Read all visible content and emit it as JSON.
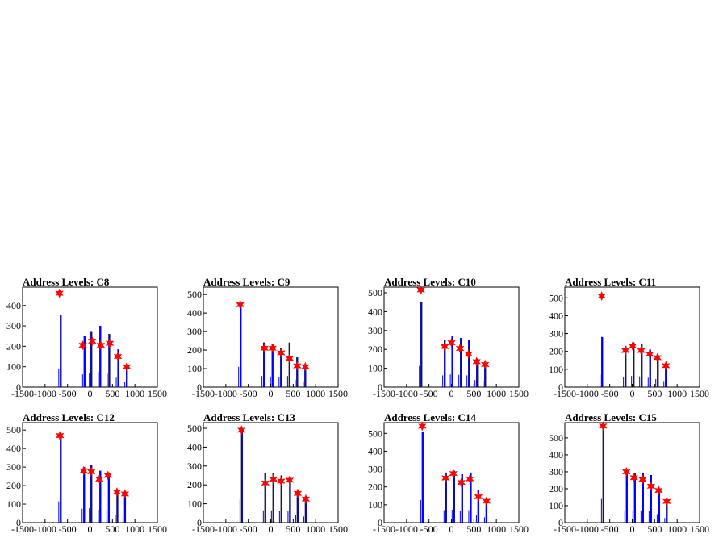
{
  "chart_data": [
    {
      "type": "histogram",
      "title": "Address Levels: C8",
      "xlim": [
        -1500,
        1500
      ],
      "ylim": [
        0,
        490
      ],
      "xticks": [
        -1500,
        -1000,
        -500,
        0,
        500,
        1000,
        1500
      ],
      "yticks": [
        0,
        100,
        200,
        300,
        400
      ],
      "bars": [
        {
          "x": -650,
          "y": 355
        },
        {
          "x": -120,
          "y": 250
        },
        {
          "x": 30,
          "y": 270
        },
        {
          "x": 230,
          "y": 300
        },
        {
          "x": 430,
          "y": 260
        },
        {
          "x": 630,
          "y": 185
        },
        {
          "x": 820,
          "y": 95
        }
      ],
      "peaks": [
        {
          "x": -680,
          "y": 460
        },
        {
          "x": -160,
          "y": 205
        },
        {
          "x": 50,
          "y": 225
        },
        {
          "x": 240,
          "y": 205
        },
        {
          "x": 440,
          "y": 215
        },
        {
          "x": 620,
          "y": 150
        },
        {
          "x": 820,
          "y": 100
        }
      ]
    },
    {
      "type": "histogram",
      "title": "Address Levels: C9",
      "xlim": [
        -1500,
        1500
      ],
      "ylim": [
        0,
        540
      ],
      "xticks": [
        -1500,
        -1000,
        -500,
        0,
        500,
        1000,
        1500
      ],
      "yticks": [
        0,
        100,
        200,
        300,
        400,
        500
      ],
      "bars": [
        {
          "x": -670,
          "y": 440
        },
        {
          "x": -150,
          "y": 240
        },
        {
          "x": 40,
          "y": 230
        },
        {
          "x": 230,
          "y": 210
        },
        {
          "x": 420,
          "y": 240
        },
        {
          "x": 590,
          "y": 160
        },
        {
          "x": 770,
          "y": 110
        }
      ],
      "peaks": [
        {
          "x": -680,
          "y": 445
        },
        {
          "x": -140,
          "y": 210
        },
        {
          "x": 40,
          "y": 210
        },
        {
          "x": 230,
          "y": 185
        },
        {
          "x": 420,
          "y": 155
        },
        {
          "x": 590,
          "y": 115
        },
        {
          "x": 770,
          "y": 110
        }
      ]
    },
    {
      "type": "histogram",
      "title": "Address Levels: C10",
      "xlim": [
        -1500,
        1500
      ],
      "ylim": [
        0,
        530
      ],
      "xticks": [
        -1500,
        -1000,
        -500,
        0,
        500,
        1000,
        1500
      ],
      "yticks": [
        0,
        100,
        200,
        300,
        400,
        500
      ],
      "bars": [
        {
          "x": -670,
          "y": 450
        },
        {
          "x": -150,
          "y": 250
        },
        {
          "x": 20,
          "y": 270
        },
        {
          "x": 210,
          "y": 260
        },
        {
          "x": 390,
          "y": 250
        },
        {
          "x": 570,
          "y": 150
        },
        {
          "x": 750,
          "y": 130
        }
      ],
      "peaks": [
        {
          "x": -680,
          "y": 515
        },
        {
          "x": -150,
          "y": 215
        },
        {
          "x": 0,
          "y": 235
        },
        {
          "x": 190,
          "y": 205
        },
        {
          "x": 380,
          "y": 175
        },
        {
          "x": 560,
          "y": 135
        },
        {
          "x": 750,
          "y": 120
        }
      ]
    },
    {
      "type": "histogram",
      "title": "Address Levels: C11",
      "xlim": [
        -1500,
        1500
      ],
      "ylim": [
        0,
        560
      ],
      "xticks": [
        -1500,
        -1000,
        -500,
        0,
        500,
        1000,
        1500
      ],
      "yticks": [
        0,
        100,
        200,
        300,
        400,
        500
      ],
      "bars": [
        {
          "x": -670,
          "y": 280
        },
        {
          "x": -150,
          "y": 230
        },
        {
          "x": 30,
          "y": 250
        },
        {
          "x": 210,
          "y": 240
        },
        {
          "x": 400,
          "y": 210
        },
        {
          "x": 570,
          "y": 180
        },
        {
          "x": 750,
          "y": 120
        }
      ],
      "peaks": [
        {
          "x": -680,
          "y": 510
        },
        {
          "x": -150,
          "y": 205
        },
        {
          "x": 10,
          "y": 230
        },
        {
          "x": 200,
          "y": 205
        },
        {
          "x": 390,
          "y": 185
        },
        {
          "x": 560,
          "y": 165
        },
        {
          "x": 750,
          "y": 120
        }
      ]
    },
    {
      "type": "histogram",
      "title": "Address Levels: C12",
      "xlim": [
        -1500,
        1500
      ],
      "ylim": [
        0,
        540
      ],
      "xticks": [
        -1500,
        -1000,
        -500,
        0,
        500,
        1000,
        1500
      ],
      "yticks": [
        0,
        100,
        200,
        300,
        400,
        500
      ],
      "bars": [
        {
          "x": -650,
          "y": 460
        },
        {
          "x": -130,
          "y": 300
        },
        {
          "x": 30,
          "y": 310
        },
        {
          "x": 230,
          "y": 280
        },
        {
          "x": 420,
          "y": 270
        },
        {
          "x": 610,
          "y": 170
        },
        {
          "x": 780,
          "y": 150
        }
      ],
      "peaks": [
        {
          "x": -670,
          "y": 470
        },
        {
          "x": -140,
          "y": 280
        },
        {
          "x": 30,
          "y": 275
        },
        {
          "x": 210,
          "y": 235
        },
        {
          "x": 400,
          "y": 255
        },
        {
          "x": 600,
          "y": 165
        },
        {
          "x": 780,
          "y": 155
        }
      ]
    },
    {
      "type": "histogram",
      "title": "Address Levels: C13",
      "xlim": [
        -1500,
        1500
      ],
      "ylim": [
        0,
        530
      ],
      "xticks": [
        -1500,
        -1000,
        -500,
        0,
        500,
        1000,
        1500
      ],
      "yticks": [
        0,
        100,
        200,
        300,
        400,
        500
      ],
      "bars": [
        {
          "x": -640,
          "y": 490
        },
        {
          "x": -120,
          "y": 260
        },
        {
          "x": 60,
          "y": 260
        },
        {
          "x": 240,
          "y": 250
        },
        {
          "x": 430,
          "y": 240
        },
        {
          "x": 600,
          "y": 160
        },
        {
          "x": 780,
          "y": 130
        }
      ],
      "peaks": [
        {
          "x": -650,
          "y": 490
        },
        {
          "x": -120,
          "y": 210
        },
        {
          "x": 60,
          "y": 230
        },
        {
          "x": 230,
          "y": 220
        },
        {
          "x": 420,
          "y": 225
        },
        {
          "x": 600,
          "y": 155
        },
        {
          "x": 780,
          "y": 125
        }
      ]
    },
    {
      "type": "histogram",
      "title": "Address Levels: C14",
      "xlim": [
        -1500,
        1500
      ],
      "ylim": [
        0,
        560
      ],
      "xticks": [
        -1500,
        -1000,
        -500,
        0,
        500,
        1000,
        1500
      ],
      "yticks": [
        0,
        100,
        200,
        300,
        400,
        500
      ],
      "bars": [
        {
          "x": -640,
          "y": 510
        },
        {
          "x": -120,
          "y": 280
        },
        {
          "x": 60,
          "y": 290
        },
        {
          "x": 240,
          "y": 270
        },
        {
          "x": 430,
          "y": 280
        },
        {
          "x": 600,
          "y": 180
        },
        {
          "x": 780,
          "y": 120
        }
      ],
      "peaks": [
        {
          "x": -650,
          "y": 540
        },
        {
          "x": -130,
          "y": 250
        },
        {
          "x": 40,
          "y": 275
        },
        {
          "x": 220,
          "y": 225
        },
        {
          "x": 410,
          "y": 245
        },
        {
          "x": 600,
          "y": 145
        },
        {
          "x": 780,
          "y": 120
        }
      ]
    },
    {
      "type": "histogram",
      "title": "Address Levels: C15",
      "xlim": [
        -1500,
        1500
      ],
      "ylim": [
        0,
        590
      ],
      "xticks": [
        -1500,
        -1000,
        -500,
        0,
        500,
        1000,
        1500
      ],
      "yticks": [
        0,
        100,
        200,
        300,
        400,
        500
      ],
      "bars": [
        {
          "x": -640,
          "y": 560
        },
        {
          "x": -120,
          "y": 290
        },
        {
          "x": 60,
          "y": 290
        },
        {
          "x": 240,
          "y": 290
        },
        {
          "x": 420,
          "y": 280
        },
        {
          "x": 600,
          "y": 200
        },
        {
          "x": 770,
          "y": 110
        }
      ],
      "peaks": [
        {
          "x": -650,
          "y": 570
        },
        {
          "x": -130,
          "y": 300
        },
        {
          "x": 40,
          "y": 265
        },
        {
          "x": 230,
          "y": 255
        },
        {
          "x": 420,
          "y": 215
        },
        {
          "x": 590,
          "y": 190
        },
        {
          "x": 770,
          "y": 125
        }
      ]
    }
  ],
  "colors": {
    "bar": "#0000ff",
    "bar_edge": "#000000",
    "peak_marker": "#ff0000",
    "frame": "#000000"
  }
}
